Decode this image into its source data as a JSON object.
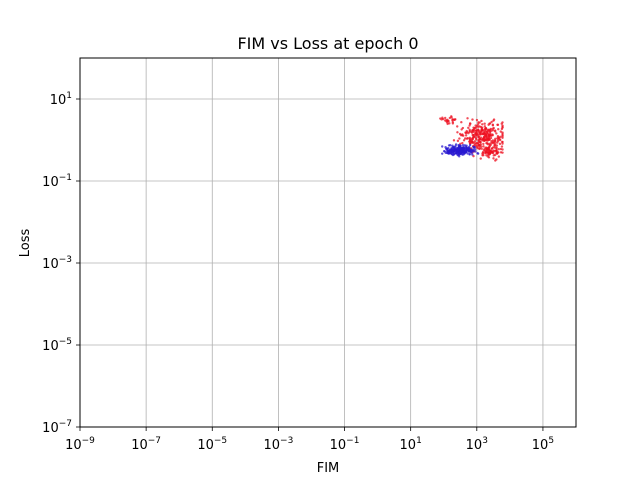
{
  "chart_data": {
    "type": "scatter",
    "title": "FIM vs Loss at epoch 0",
    "xlabel": "FIM",
    "ylabel": "Loss",
    "xscale": "log",
    "yscale": "log",
    "xlim": [
      1e-09,
      1000000.0
    ],
    "ylim": [
      1e-07,
      100
    ],
    "x_tick_exponents": [
      -9,
      -7,
      -5,
      -3,
      -1,
      1,
      3,
      5
    ],
    "y_tick_exponents": [
      -7,
      -5,
      -3,
      -1,
      1
    ],
    "tick_base": "10",
    "grid": true,
    "colors": {
      "red": "#ee1122",
      "blue": "#2a1ad0",
      "grid": "#b0b0b0"
    },
    "series": [
      {
        "color": "red",
        "clusters": [
          {
            "x_range": [
              60,
              6000
            ],
            "y_range": [
              0.3,
              4.0
            ],
            "count": 320,
            "center": [
              1500,
              1.2
            ]
          },
          {
            "x_range": [
              60,
              300
            ],
            "y_range": [
              2.0,
              3.8
            ],
            "count": 25,
            "center": [
              150,
              3.0
            ]
          },
          {
            "x_range": [
              800,
              5000
            ],
            "y_range": [
              0.3,
              0.9
            ],
            "count": 60,
            "center": [
              2500,
              0.5
            ]
          }
        ]
      },
      {
        "color": "blue",
        "clusters": [
          {
            "x_range": [
              90,
              2000
            ],
            "y_range": [
              0.35,
              0.8
            ],
            "count": 220,
            "center": [
              300,
              0.55
            ]
          }
        ]
      }
    ]
  }
}
